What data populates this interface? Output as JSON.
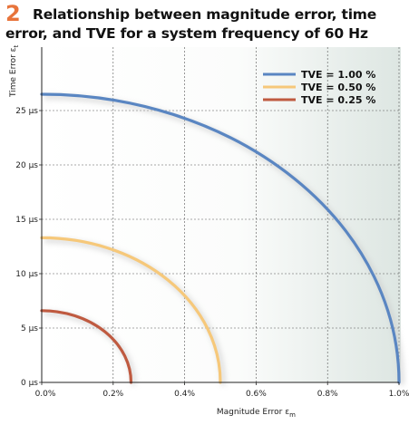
{
  "figure": {
    "number": "2",
    "title": "Relationship between magnitude error, time error, and TVE for a system frequency of 60 Hz"
  },
  "chart_data": {
    "type": "line",
    "title": "Relationship between magnitude error, time error, and TVE for a system frequency of 60 Hz",
    "xlabel": "Magnitude  Error",
    "xlabel_symbol": "ε",
    "xlabel_sub": "m",
    "ylabel": "Time Error",
    "ylabel_symbol": "ε",
    "ylabel_sub": "t",
    "xlim": [
      0,
      1.0
    ],
    "ylim": [
      0,
      30
    ],
    "x_unit": "%",
    "y_unit": "µs",
    "xticks": [
      0.0,
      0.2,
      0.4,
      0.6,
      0.8,
      1.0
    ],
    "xtick_labels": [
      "0.0%",
      "0.2%",
      "0.4%",
      "0.6%",
      "0.8%",
      "1.0%"
    ],
    "yticks": [
      0,
      5,
      10,
      15,
      20,
      25
    ],
    "ytick_labels": [
      "0 µs",
      "5 µs",
      "10 µs",
      "15 µs",
      "20 µs",
      "25 µs"
    ],
    "grid": true,
    "legend_position": "top-right",
    "series": [
      {
        "name": "TVE = 1.00 %",
        "color": "#5a86c2",
        "x_max": 1.0,
        "y_max": 26.5
      },
      {
        "name": "TVE = 0.50 %",
        "color": "#f6c87a",
        "x_max": 0.5,
        "y_max": 13.3
      },
      {
        "name": "TVE = 0.25 %",
        "color": "#bf5a40",
        "x_max": 0.25,
        "y_max": 6.6
      }
    ]
  }
}
